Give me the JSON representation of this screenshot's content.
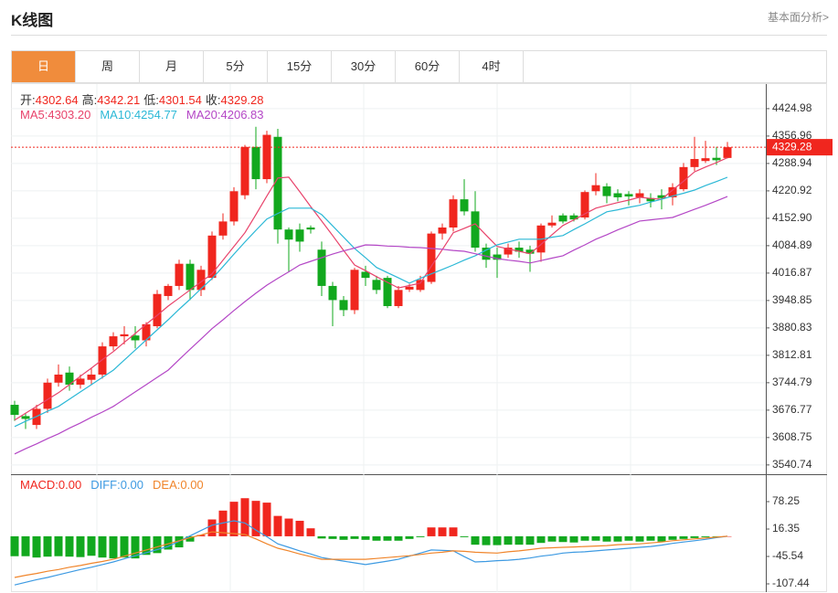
{
  "header": {
    "title": "K线图",
    "link": "基本面分析>"
  },
  "tabs": [
    "日",
    "周",
    "月",
    "5分",
    "15分",
    "30分",
    "60分",
    "4时"
  ],
  "active_tab": 0,
  "chart_data": [
    {
      "type": "candlestick",
      "ohlc_labels": [
        "开:",
        "高:",
        "低:",
        "收:"
      ],
      "open": [
        3690,
        3662,
        3640,
        3680,
        3745,
        3770,
        3740,
        3752,
        3765,
        3835,
        3860,
        3862,
        3850,
        3885,
        3960,
        3985,
        4040,
        3975,
        4005,
        4110,
        4145,
        4210,
        4330,
        4250,
        4355,
        4125,
        4125,
        4130,
        4075,
        3985,
        3950,
        3925,
        4020,
        4000,
        4005,
        3935,
        3976,
        3975,
        3995,
        4115,
        4130,
        4200,
        4170,
        4080,
        4063,
        4063,
        4080,
        4075,
        4068,
        4135,
        4160,
        4160,
        4155,
        4220,
        4232,
        4215,
        4213,
        4205,
        4203,
        4210,
        4205,
        4225,
        4280,
        4295,
        4303,
        4302.64
      ],
      "high": [
        3700,
        3670,
        3690,
        3755,
        3790,
        3785,
        3765,
        3780,
        3845,
        3870,
        3885,
        3885,
        3895,
        3975,
        3990,
        4050,
        4050,
        4035,
        4120,
        4165,
        4230,
        4335,
        4380,
        4370,
        4375,
        4130,
        4140,
        4135,
        4095,
        3995,
        3960,
        4030,
        4035,
        4010,
        4010,
        3985,
        3990,
        4010,
        4120,
        4140,
        4210,
        4250,
        4220,
        4090,
        4080,
        4090,
        4095,
        4085,
        4140,
        4160,
        4165,
        4165,
        4222,
        4265,
        4240,
        4225,
        4220,
        4225,
        4215,
        4225,
        4240,
        4290,
        4355,
        4345,
        4330,
        4342.21
      ],
      "low": [
        3650,
        3630,
        3630,
        3670,
        3735,
        3725,
        3730,
        3740,
        3755,
        3825,
        3840,
        3830,
        3835,
        3880,
        3950,
        3975,
        3950,
        3960,
        4000,
        4100,
        4135,
        4200,
        4225,
        4240,
        4090,
        4020,
        4070,
        4115,
        3960,
        3885,
        3910,
        3915,
        3985,
        3965,
        3930,
        3930,
        3970,
        3970,
        3990,
        4100,
        4120,
        4160,
        4070,
        4030,
        4005,
        4055,
        4055,
        4020,
        4045,
        4130,
        4140,
        4145,
        4150,
        4210,
        4190,
        4195,
        4185,
        4190,
        4180,
        4175,
        4185,
        4220,
        4270,
        4290,
        4285,
        4301.54
      ],
      "close": [
        3665,
        3655,
        3680,
        3745,
        3765,
        3740,
        3755,
        3765,
        3835,
        3860,
        3865,
        3850,
        3890,
        3965,
        3985,
        4040,
        3975,
        4025,
        4110,
        4145,
        4220,
        4330,
        4250,
        4360,
        4125,
        4100,
        4095,
        4125,
        3985,
        3950,
        3925,
        4025,
        4005,
        3975,
        3935,
        3975,
        3983,
        4000,
        4115,
        4130,
        4200,
        4170,
        4080,
        4050,
        4050,
        4080,
        4070,
        4065,
        4135,
        4142,
        4145,
        4150,
        4218,
        4235,
        4208,
        4205,
        4207,
        4215,
        4195,
        4203,
        4230,
        4280,
        4300,
        4302,
        4297,
        4329.28
      ],
      "up_color": "#f0261e",
      "down_color": "#12a81e",
      "series": [
        {
          "name": "MA5:",
          "value_label": "4303.20",
          "color": "#e8436b",
          "values": [
            3652,
            3669,
            3686,
            3703,
            3720,
            3740,
            3761,
            3781,
            3802,
            3822,
            3845,
            3867,
            3890,
            3912,
            3935,
            3955,
            3975,
            3995,
            4015,
            4049,
            4083,
            4117,
            4162,
            4208,
            4253,
            4255,
            4219,
            4182,
            4146,
            4110,
            4073,
            4037,
            4023,
            4008,
            3994,
            3980,
            3986,
            3992,
            4034,
            4075,
            4117,
            4128,
            4139,
            4111,
            4083,
            4077,
            4071,
            4065,
            4088,
            4112,
            4135,
            4149,
            4164,
            4178,
            4185,
            4192,
            4198,
            4205,
            4202,
            4200,
            4223,
            4245,
            4268,
            4280,
            4291,
            4303.2
          ]
        },
        {
          "name": "MA10:",
          "value_label": "4254.77",
          "color": "#2bb8d6",
          "values": [
            3636,
            3649,
            3661,
            3674,
            3686,
            3704,
            3722,
            3740,
            3758,
            3776,
            3801,
            3826,
            3851,
            3876,
            3901,
            3927,
            3952,
            3978,
            4003,
            4033,
            4064,
            4094,
            4123,
            4151,
            4165,
            4178,
            4178,
            4178,
            4162,
            4134,
            4106,
            4078,
            4055,
            4031,
            4018,
            4005,
            3992,
            4004,
            4015,
            4026,
            4037,
            4049,
            4060,
            4074,
            4087,
            4094,
            4101,
            4101,
            4101,
            4106,
            4110,
            4125,
            4139,
            4154,
            4169,
            4174,
            4180,
            4185,
            4193,
            4200,
            4208,
            4215,
            4223,
            4234,
            4244,
            4254.77
          ]
        },
        {
          "name": "MA20:",
          "value_label": "4206.83",
          "color": "#b447c6",
          "values": [
            3568,
            3581,
            3593,
            3606,
            3618,
            3632,
            3645,
            3659,
            3672,
            3686,
            3704,
            3722,
            3740,
            3758,
            3776,
            3802,
            3828,
            3853,
            3879,
            3901,
            3924,
            3946,
            3967,
            3987,
            4004,
            4020,
            4037,
            4046,
            4055,
            4064,
            4072,
            4079,
            4087,
            4086,
            4084,
            4083,
            4081,
            4080,
            4078,
            4076,
            4073,
            4071,
            4065,
            4059,
            4053,
            4049,
            4046,
            4042,
            4048,
            4054,
            4060,
            4074,
            4087,
            4101,
            4112,
            4124,
            4135,
            4146,
            4149,
            4152,
            4155,
            4165,
            4175,
            4185,
            4196,
            4206.83
          ]
        }
      ],
      "ylim": [
        3520,
        4486
      ],
      "yticks": [
        3540.74,
        3608.75,
        3676.77,
        3744.79,
        3812.81,
        3880.83,
        3948.85,
        4016.87,
        4084.89,
        {
          "value": 4152.9,
          "label": "4152.90"
        },
        4220.92,
        4288.94,
        4356.96,
        4424.98
      ],
      "grid": true
    },
    {
      "type": "macd",
      "macd_name": "MACD:",
      "macd_label": "0.00",
      "up_color": "#f0261e",
      "down_color": "#12a81e",
      "macd": [
        -45,
        -45,
        -48,
        -46,
        -45,
        -46,
        -47,
        -44,
        -48,
        -50,
        -48,
        -50,
        -42,
        -38,
        -30,
        -25,
        -12,
        3,
        38,
        58,
        78,
        86,
        80,
        76,
        46,
        40,
        35,
        18,
        -5,
        -6,
        -8,
        -6,
        -8,
        -10,
        -10,
        -10,
        -6,
        -2,
        20,
        20,
        20,
        -2,
        -19,
        -20,
        -20,
        -19,
        -19,
        -19,
        -15,
        -12,
        -13,
        -14,
        -10,
        -10,
        -12,
        -12,
        -10,
        -12,
        -10,
        -12,
        -8,
        -6,
        -4,
        -2,
        -1,
        0
      ],
      "series": [
        {
          "name": "DIFF:",
          "value_label": "0.00",
          "color": "#3d9ae2",
          "values": [
            -110,
            -104,
            -98,
            -93,
            -87,
            -81,
            -75,
            -70,
            -64,
            -58,
            -51,
            -44,
            -37,
            -30,
            -23,
            -11,
            1,
            13,
            25,
            30,
            35,
            30,
            14,
            -1,
            -17,
            -25,
            -33,
            -40,
            -48,
            -52,
            -56,
            -60,
            -64,
            -60,
            -56,
            -52,
            -45,
            -38,
            -31,
            -32,
            -33,
            -46,
            -58,
            -57,
            -55,
            -54,
            -52,
            -49,
            -45,
            -42,
            -38,
            -36,
            -35,
            -33,
            -31,
            -29,
            -27,
            -25,
            -23,
            -20,
            -16,
            -13,
            -10,
            -7,
            -3,
            0
          ]
        },
        {
          "name": "DEA:",
          "value_label": "0.00",
          "color": "#f0852b",
          "values": [
            -93,
            -88,
            -84,
            -79,
            -75,
            -70,
            -66,
            -61,
            -57,
            -52,
            -45,
            -38,
            -31,
            -24,
            -17,
            -10,
            -3,
            3,
            10,
            8,
            6,
            4,
            -6,
            -17,
            -27,
            -33,
            -40,
            -46,
            -52,
            -52,
            -52,
            -52,
            -52,
            -50,
            -48,
            -46,
            -44,
            -41,
            -38,
            -36,
            -33,
            -34,
            -36,
            -37,
            -38,
            -35,
            -33,
            -30,
            -27,
            -26,
            -25,
            -24,
            -23,
            -22,
            -21,
            -19,
            -18,
            -17,
            -15,
            -13,
            -10,
            -8,
            -6,
            -4,
            -2,
            0
          ]
        }
      ],
      "ylim": [
        -128.1,
        138.1
      ],
      "yticks": [
        -107.44,
        -45.54,
        16.35,
        78.25
      ]
    }
  ]
}
